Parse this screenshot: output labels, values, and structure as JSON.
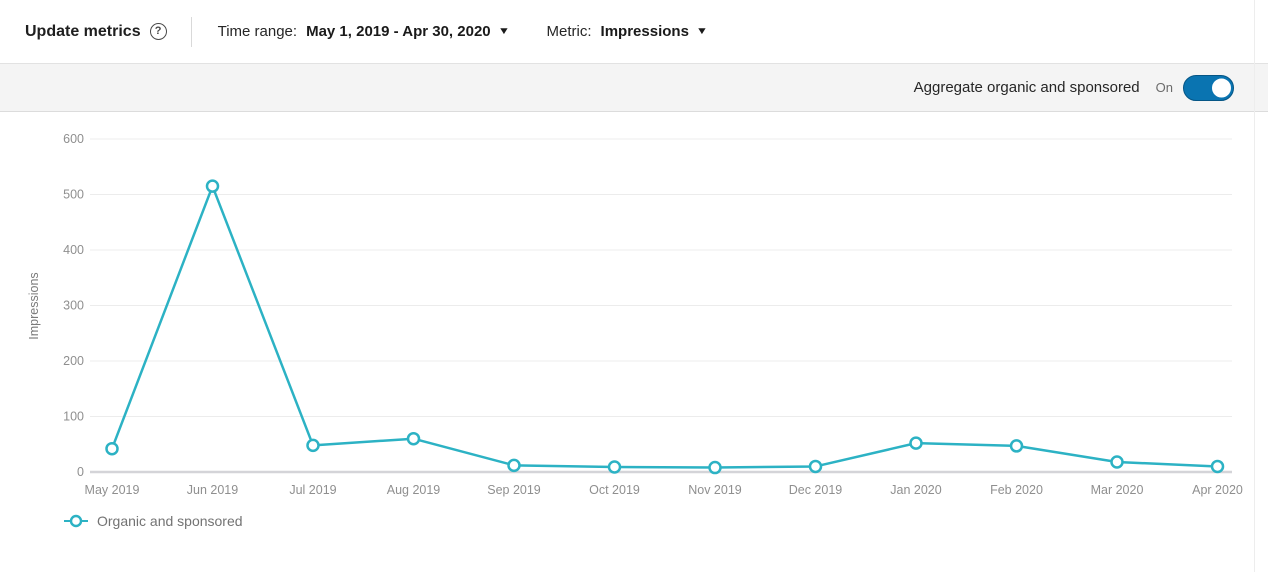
{
  "header": {
    "title": "Update metrics",
    "help_glyph": "?",
    "time_range_label": "Time range:",
    "time_range_value": "May 1, 2019 - Apr 30, 2020",
    "metric_label": "Metric:",
    "metric_value": "Impressions"
  },
  "icons": {
    "caret_down": "▼"
  },
  "aggregate_bar": {
    "label": "Aggregate organic and sponsored",
    "toggle_state": "On",
    "toggle_on": true
  },
  "colors": {
    "line": "#2cb2c4",
    "point_fill": "#ffffff",
    "toggle_blue": "#0a74b1",
    "grid": "#ececec",
    "zero_axis": "#d4d4d8",
    "axis_text": "#8f8f8f",
    "band_bg": "#f4f4f4"
  },
  "chart_data": {
    "type": "line",
    "title": "",
    "xlabel": "",
    "ylabel": "Impressions",
    "categories": [
      "May 2019",
      "Jun 2019",
      "Jul 2019",
      "Aug 2019",
      "Sep 2019",
      "Oct 2019",
      "Nov 2019",
      "Dec 2019",
      "Jan 2020",
      "Feb 2020",
      "Mar 2020",
      "Apr 2020"
    ],
    "series": [
      {
        "name": "Organic and sponsored",
        "values": [
          42,
          515,
          48,
          60,
          12,
          9,
          8,
          10,
          52,
          47,
          18,
          10
        ]
      }
    ],
    "ylim": [
      0,
      600
    ],
    "yticks": [
      0,
      100,
      200,
      300,
      400,
      500,
      600
    ],
    "grid": true,
    "legend_position": "bottom"
  }
}
